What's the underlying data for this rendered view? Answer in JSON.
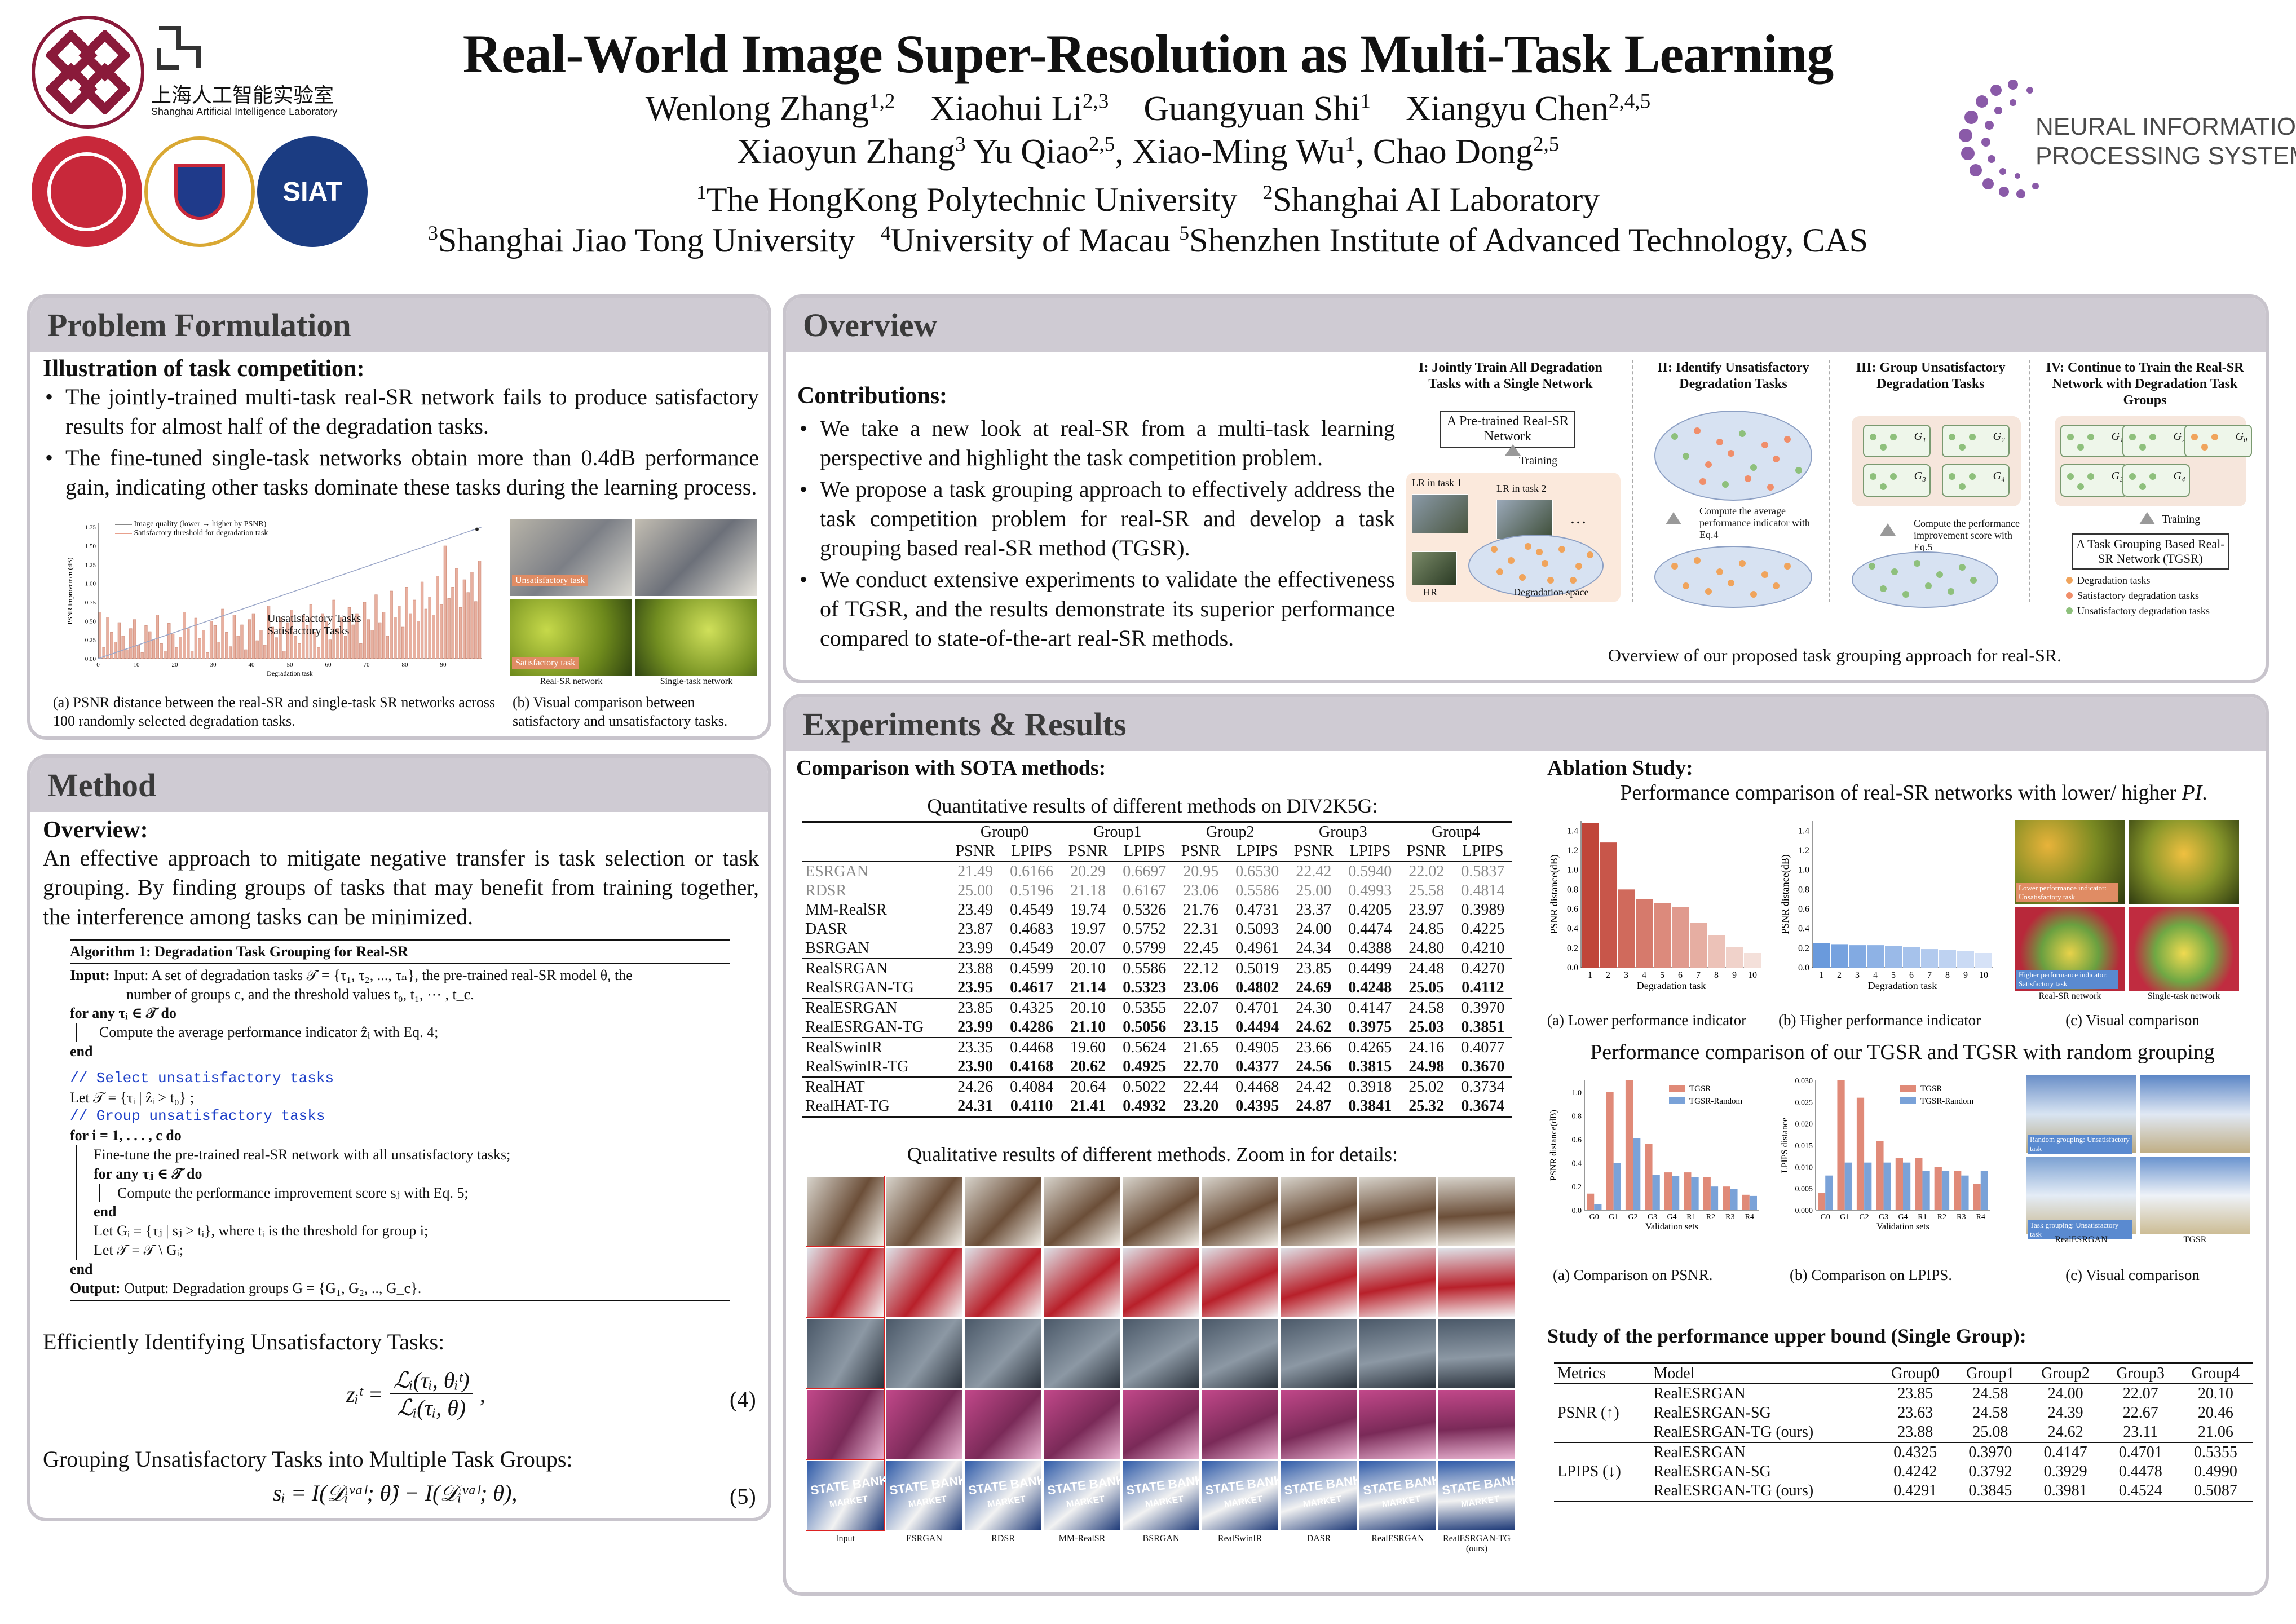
{
  "header": {
    "title": "Real-World Image Super-Resolution as Multi-Task Learning",
    "authors_line1": [
      "Wenlong Zhang",
      "1,2",
      "Xiaohui Li",
      "2,3",
      "Guangyuan Shi",
      "1",
      "Xiangyu Chen",
      "2,4,5"
    ],
    "authors_line2": [
      "Xiaoyun Zhang",
      "3",
      "Yu Qiao",
      "2,5",
      "Xiao-Ming Wu",
      "1",
      "Chao Dong",
      "2,5"
    ],
    "aff1": [
      "1",
      "The HongKong Polytechnic University",
      "2",
      "Shanghai AI Laboratory"
    ],
    "aff2": [
      "3",
      "Shanghai Jiao Tong University",
      "4",
      "University of Macau",
      "5",
      "Shenzhen Institute of Advanced Technology, CAS"
    ],
    "logo_shailab_cn": "上海人工智能实验室",
    "logo_shailab_en": "Shanghai Artificial Intelligence Laboratory",
    "logo_siat": "SIAT",
    "neurips_line1": "NEURAL INFORMATION",
    "neurips_line2": "PROCESSING SYSTEMS"
  },
  "problem": {
    "heading": "Problem Formulation",
    "subheading": "Illustration of task competition:",
    "bullets": [
      "The jointly-trained multi-task real-SR network fails to produce satisfactory results for almost half of the degradation tasks.",
      "The fine-tuned single-task networks obtain more than 0.4dB performance gain, indicating other tasks dominate these tasks during the learning process."
    ],
    "chart_legend": [
      "Image quality (lower → higher by PSNR)",
      "Satisfactory threshold for degradation task"
    ],
    "chart_ylabel": "PSNR improvement(dB)",
    "chart_xlabel": "Degradation task",
    "chart_annot1": "Unsatisfactory Tasks",
    "chart_annot2": "Satisfactory Tasks",
    "chart_yticks": [
      "1.75",
      "1.50",
      "1.25",
      "1.00",
      "0.75",
      "0.50",
      "0.25",
      "0.00"
    ],
    "chart_xticks": [
      "0",
      "10",
      "20",
      "30",
      "40",
      "50",
      "60",
      "70",
      "80",
      "90"
    ],
    "vis_label1": "Unsatisfactory task",
    "vis_label2": "Satisfactory task",
    "vis_col1": "Real-SR network",
    "vis_col2": "Single-task network",
    "caption_a": "(a) PSNR distance between the real-SR and single-task SR networks across 100 randomly selected degradation tasks.",
    "caption_b": "(b) Visual comparison between satisfactory and unsatisfactory tasks."
  },
  "method": {
    "heading": "Method",
    "subheading": "Overview:",
    "overview": "An effective approach to mitigate negative transfer is task selection or task grouping. By finding groups of tasks that may benefit from training together, the interference among tasks can be minimized.",
    "algo_title": "Algorithm 1: Degradation Task Grouping for Real-SR",
    "algo_lines": [
      "Input: A set of degradation tasks 𝒯 = {τ₁, τ₂, ..., τₙ}, the pre-trained real-SR model θ, the",
      "number of groups c, and the threshold values t₀, t₁, ⋯ , t_c.",
      "for any τᵢ ∈ 𝒯 do",
      "Compute the average performance indicator ẑᵢ with Eq. 4;",
      "end",
      "// Select unsatisfactory tasks",
      "Let 𝒯 = {τᵢ | ẑᵢ > t₀} ;",
      "// Group unsatisfactory tasks",
      "for i = 1, . . . , c do",
      "Fine-tune the pre-trained real-SR network with all unsatisfactory tasks;",
      "for any τⱼ ∈ 𝒯 do",
      "Compute the performance improvement score sⱼ with Eq. 5;",
      "end",
      "Let Gᵢ = {τⱼ | sⱼ > tᵢ}, where tᵢ is the threshold for group i;",
      "Let 𝒯 = 𝒯 \\ Gᵢ;",
      "end",
      "Output: Degradation groups G = {G₁, G₂, .., G_c}."
    ],
    "identify_title": "Efficiently Identifying Unsatisfactory Tasks:",
    "eq4_lhs": "zᵢᵗ =",
    "eq4_num": "ℒᵢ(τᵢ, θᵢᵗ)",
    "eq4_den": "ℒᵢ(τᵢ, θ)",
    "eq4_tag": "(4)",
    "group_title": "Grouping Unsatisfactory Tasks into Multiple Task Groups:",
    "eq5": "sᵢ = I(𝒟ᵢᵛᵃˡ; θ̂) − I(𝒟ᵢᵛᵃˡ; θ),",
    "eq5_tag": "(5)"
  },
  "overview": {
    "heading": "Overview",
    "contrib_title": "Contributions:",
    "bullets": [
      "We take a new look at real-SR from a multi-task learning perspective and highlight the task competition problem.",
      "We propose a task grouping approach to effectively address the task competition problem for real-SR and develop a task grouping based real-SR method (TGSR).",
      "We conduct extensive experiments to validate the effectiveness of TGSR, and the results demonstrate its superior performance compared to state-of-the-art real-SR methods."
    ],
    "step1": "I: Jointly Train All Degradation Tasks with a Single Network",
    "step2": "II: Identify Unsatisfactory Degradation Tasks",
    "step3": "III: Group Unsatisfactory Degradation Tasks",
    "step4": "IV: Continue to Train the Real-SR Network with Degradation Task Groups",
    "pretrained": "A Pre-trained Real-SR Network",
    "training": "Training",
    "lr1": "LR in task 1",
    "lr2": "LR in task 2",
    "hr": "HR",
    "ellipsis": "…",
    "deg_space": "Degradation space",
    "compute_avg": "Compute the average performance indicator with Eq.4",
    "compute_imp": "Compute the performance improvement score with Eq.5",
    "groups": [
      "G₁",
      "G₂",
      "G₃",
      "G₄"
    ],
    "groups4": [
      "G₁",
      "G₂",
      "G₀",
      "G₃",
      "G₄"
    ],
    "tg_network": "A Task Grouping Based Real-SR Network (TGSR)",
    "legend": [
      "Degradation tasks",
      "Satisfactory degradation tasks",
      "Unsatisfactory degradation tasks"
    ],
    "caption": "Overview of our proposed task grouping approach for real-SR."
  },
  "experiments": {
    "heading": "Experiments & Results",
    "sota_title": "Comparison with SOTA methods:",
    "table_title": "Quantitative results of different methods on DIV2K5G:",
    "groups": [
      "Group0",
      "Group1",
      "Group2",
      "Group3",
      "Group4"
    ],
    "metric_cols": [
      "PSNR",
      "LPIPS"
    ],
    "rows_gray": [
      [
        "ESRGAN",
        "21.49",
        "0.6166",
        "20.29",
        "0.6697",
        "20.95",
        "0.6530",
        "22.42",
        "0.5940",
        "22.02",
        "0.5837"
      ],
      [
        "RDSR",
        "25.00",
        "0.5196",
        "21.18",
        "0.6167",
        "23.06",
        "0.5586",
        "25.00",
        "0.4993",
        "25.58",
        "0.4814"
      ]
    ],
    "rows_plain": [
      [
        "MM-RealSR",
        "23.49",
        "0.4549",
        "19.74",
        "0.5326",
        "21.76",
        "0.4731",
        "23.37",
        "0.4205",
        "23.97",
        "0.3989"
      ],
      [
        "DASR",
        "23.87",
        "0.4683",
        "19.97",
        "0.5752",
        "22.31",
        "0.5093",
        "24.00",
        "0.4474",
        "24.85",
        "0.4225"
      ],
      [
        "BSRGAN",
        "23.99",
        "0.4549",
        "20.07",
        "0.5799",
        "22.45",
        "0.4961",
        "24.34",
        "0.4388",
        "24.80",
        "0.4210"
      ]
    ],
    "pairs": [
      [
        [
          "RealSRGAN",
          "23.88",
          "0.4599",
          "20.10",
          "0.5586",
          "22.12",
          "0.5019",
          "23.85",
          "0.4499",
          "24.48",
          "0.4270"
        ],
        [
          "RealSRGAN-TG",
          "23.95",
          "0.4617",
          "21.14",
          "0.5323",
          "23.06",
          "0.4802",
          "24.69",
          "0.4248",
          "25.05",
          "0.4112"
        ]
      ],
      [
        [
          "RealESRGAN",
          "23.85",
          "0.4325",
          "20.10",
          "0.5355",
          "22.07",
          "0.4701",
          "24.30",
          "0.4147",
          "24.58",
          "0.3970"
        ],
        [
          "RealESRGAN-TG",
          "23.99",
          "0.4286",
          "21.10",
          "0.5056",
          "23.15",
          "0.4494",
          "24.62",
          "0.3975",
          "25.03",
          "0.3851"
        ]
      ],
      [
        [
          "RealSwinIR",
          "23.35",
          "0.4468",
          "19.60",
          "0.5624",
          "21.65",
          "0.4905",
          "23.66",
          "0.4265",
          "24.16",
          "0.4077"
        ],
        [
          "RealSwinIR-TG",
          "23.90",
          "0.4168",
          "20.62",
          "0.4925",
          "22.70",
          "0.4377",
          "24.56",
          "0.3815",
          "24.98",
          "0.3670"
        ]
      ],
      [
        [
          "RealHAT",
          "24.26",
          "0.4084",
          "20.64",
          "0.5022",
          "22.44",
          "0.4468",
          "24.42",
          "0.3918",
          "25.02",
          "0.3734"
        ],
        [
          "RealHAT-TG",
          "24.31",
          "0.4110",
          "21.41",
          "0.4932",
          "23.20",
          "0.4395",
          "24.87",
          "0.3841",
          "25.32",
          "0.3674"
        ]
      ]
    ],
    "qual_title": "Qualitative results of different methods. Zoom in for details:",
    "qual_cols": [
      "Input",
      "ESRGAN",
      "RDSR",
      "MM-RealSR",
      "BSRGAN",
      "RealSwinIR",
      "DASR",
      "RealESRGAN",
      "RealESRGAN-TG (ours)"
    ],
    "sign_text1": "STATE BANK",
    "sign_text2": "MARKET",
    "ablation_title": "Ablation Study:",
    "perf_title_pre": "Performance comparison of real-SR networks with lower/ higher ",
    "perf_title_em": "PI",
    "perf_title_post": ".",
    "ylabel_psnr_dist": "PSNR distance(dB)",
    "xlabel_deg": "Degradation task",
    "cap_low": "(a) Lower performance indicator",
    "cap_high": "(b) Higher performance indicator",
    "cap_vis": "(c) Visual comparison",
    "vis_lower_label": "Lower performance indicator: Unsatisfactory task",
    "vis_higher_label": "Higher performance indicator: Satisfactory task",
    "vis_col1": "Real-SR network",
    "vis_col2": "Single-task network",
    "random_title": "Performance comparison of our TGSR and TGSR with random grouping",
    "legend_tgsr": "TGSR",
    "legend_random": "TGSR-Random",
    "ylabel_psnr": "PSNR distance(dB)",
    "ylabel_lpips": "LPIPS distance",
    "xlabel_val": "Validation sets",
    "val_labels": [
      "G0",
      "G1",
      "G2",
      "G3",
      "G4",
      "R1",
      "R2",
      "R3",
      "R4"
    ],
    "cap_rand_a": "(a) Comparison on PSNR.",
    "cap_rand_b": "(b) Comparison on LPIPS.",
    "cap_rand_c": "(c) Visual comparison",
    "rand_vis_label1": "Random grouping: Unsatisfactory task",
    "rand_vis_label2": "Task grouping: Unsatisfactory task",
    "rand_vis_col1": "RealESRGAN",
    "rand_vis_col2": "TGSR",
    "upper_title": "Study of the performance upper bound (Single Group):",
    "upper_head": [
      "Metrics",
      "Model",
      "Group0",
      "Group1",
      "Group2",
      "Group3",
      "Group4"
    ],
    "upper_psnr_label": "PSNR (↑)",
    "upper_lpips_label": "LPIPS (↓)",
    "upper_psnr": [
      [
        "RealESRGAN",
        "23.85",
        "24.58",
        "24.00",
        "22.07",
        "20.10"
      ],
      [
        "RealESRGAN-SG",
        "23.63",
        "24.58",
        "24.39",
        "22.67",
        "20.46"
      ],
      [
        "RealESRGAN-TG (ours)",
        "23.88",
        "25.08",
        "24.62",
        "23.11",
        "21.06"
      ]
    ],
    "upper_lpips": [
      [
        "RealESRGAN",
        "0.4325",
        "0.3970",
        "0.4147",
        "0.4701",
        "0.5355"
      ],
      [
        "RealESRGAN-SG",
        "0.4242",
        "0.3792",
        "0.3929",
        "0.4478",
        "0.4990"
      ],
      [
        "RealESRGAN-TG (ours)",
        "0.4291",
        "0.3845",
        "0.3981",
        "0.4524",
        "0.5087"
      ]
    ]
  },
  "chart_data": [
    {
      "type": "bar",
      "title": "",
      "xlabel": "Degradation task",
      "ylabel": "PSNR improvement(dB)",
      "ylim": [
        0,
        1.8
      ],
      "series": [
        {
          "name": "Image quality (lower → higher by PSNR)",
          "values": [
            0.62,
            0.15,
            0.55,
            0.35,
            0.22,
            0.48,
            0.3,
            0.12,
            0.4,
            0.52,
            0.18,
            0.08,
            0.44,
            0.36,
            0.25,
            0.58,
            0.2,
            0.1,
            0.47,
            0.33,
            0.15,
            0.29,
            0.62,
            0.4,
            0.1,
            0.54,
            0.27,
            0.38,
            0.08,
            0.5,
            0.44,
            0.22,
            0.66,
            0.35,
            0.16,
            0.58,
            0.3,
            0.45,
            0.12,
            0.52,
            0.6,
            0.24,
            0.38,
            0.18,
            0.7,
            0.42,
            0.28,
            0.55,
            0.1,
            0.48,
            0.65,
            0.3,
            0.2,
            0.58,
            0.44,
            0.72,
            0.35,
            0.15,
            0.6,
            0.5,
            0.25,
            0.78,
            0.4,
            0.55,
            0.3,
            0.68,
            0.45,
            0.6,
            0.2,
            0.75,
            0.52,
            0.38,
            0.85,
            0.48,
            0.62,
            0.3,
            0.9,
            0.55,
            0.7,
            0.42,
            0.95,
            0.6,
            0.78,
            0.5,
            1.02,
            0.66,
            0.82,
            0.58,
            1.1,
            0.72,
            1.5,
            0.8,
            0.95,
            1.2,
            0.68,
            1.05,
            0.88,
            1.15,
            0.76,
            1.3
          ]
        }
      ],
      "threshold_line": [
        0,
        1.75
      ]
    },
    {
      "type": "bar",
      "title": "",
      "xlabel": "Degradation task",
      "ylabel": "PSNR distance(dB)",
      "categories": [
        "1",
        "2",
        "3",
        "4",
        "5",
        "6",
        "7",
        "8",
        "9",
        "10"
      ],
      "values": [
        1.48,
        1.28,
        0.8,
        0.7,
        0.66,
        0.62,
        0.46,
        0.33,
        0.21,
        0.15
      ],
      "ylim": [
        0,
        1.5
      ]
    },
    {
      "type": "bar",
      "title": "",
      "xlabel": "Degradation task",
      "ylabel": "PSNR distance(dB)",
      "categories": [
        "1",
        "2",
        "3",
        "4",
        "5",
        "6",
        "7",
        "8",
        "9",
        "10"
      ],
      "values": [
        0.25,
        0.24,
        0.23,
        0.23,
        0.22,
        0.21,
        0.19,
        0.18,
        0.17,
        0.15
      ],
      "ylim": [
        0,
        1.5
      ]
    },
    {
      "type": "bar",
      "title": "",
      "xlabel": "Validation sets",
      "ylabel": "PSNR distance(dB)",
      "categories": [
        "G0",
        "G1",
        "G2",
        "G3",
        "G4",
        "R1",
        "R2",
        "R3",
        "R4"
      ],
      "series": [
        {
          "name": "TGSR",
          "values": [
            0.14,
            1.0,
            1.1,
            0.56,
            0.32,
            0.32,
            0.28,
            0.2,
            0.13
          ]
        },
        {
          "name": "TGSR-Random",
          "values": [
            0.05,
            0.4,
            0.61,
            0.3,
            0.29,
            0.28,
            0.2,
            0.18,
            0.12
          ]
        }
      ],
      "ylim": [
        0,
        1.1
      ]
    },
    {
      "type": "bar",
      "title": "",
      "xlabel": "Validation sets",
      "ylabel": "LPIPS distance",
      "categories": [
        "G0",
        "G1",
        "G2",
        "G3",
        "G4",
        "R1",
        "R2",
        "R3",
        "R4"
      ],
      "series": [
        {
          "name": "TGSR",
          "values": [
            0.004,
            0.03,
            0.026,
            0.016,
            0.012,
            0.012,
            0.01,
            0.009,
            0.006
          ]
        },
        {
          "name": "TGSR-Random",
          "values": [
            0.008,
            0.011,
            0.011,
            0.011,
            0.011,
            0.009,
            0.009,
            0.008,
            0.009
          ]
        }
      ],
      "ylim": [
        0,
        0.03
      ]
    }
  ]
}
